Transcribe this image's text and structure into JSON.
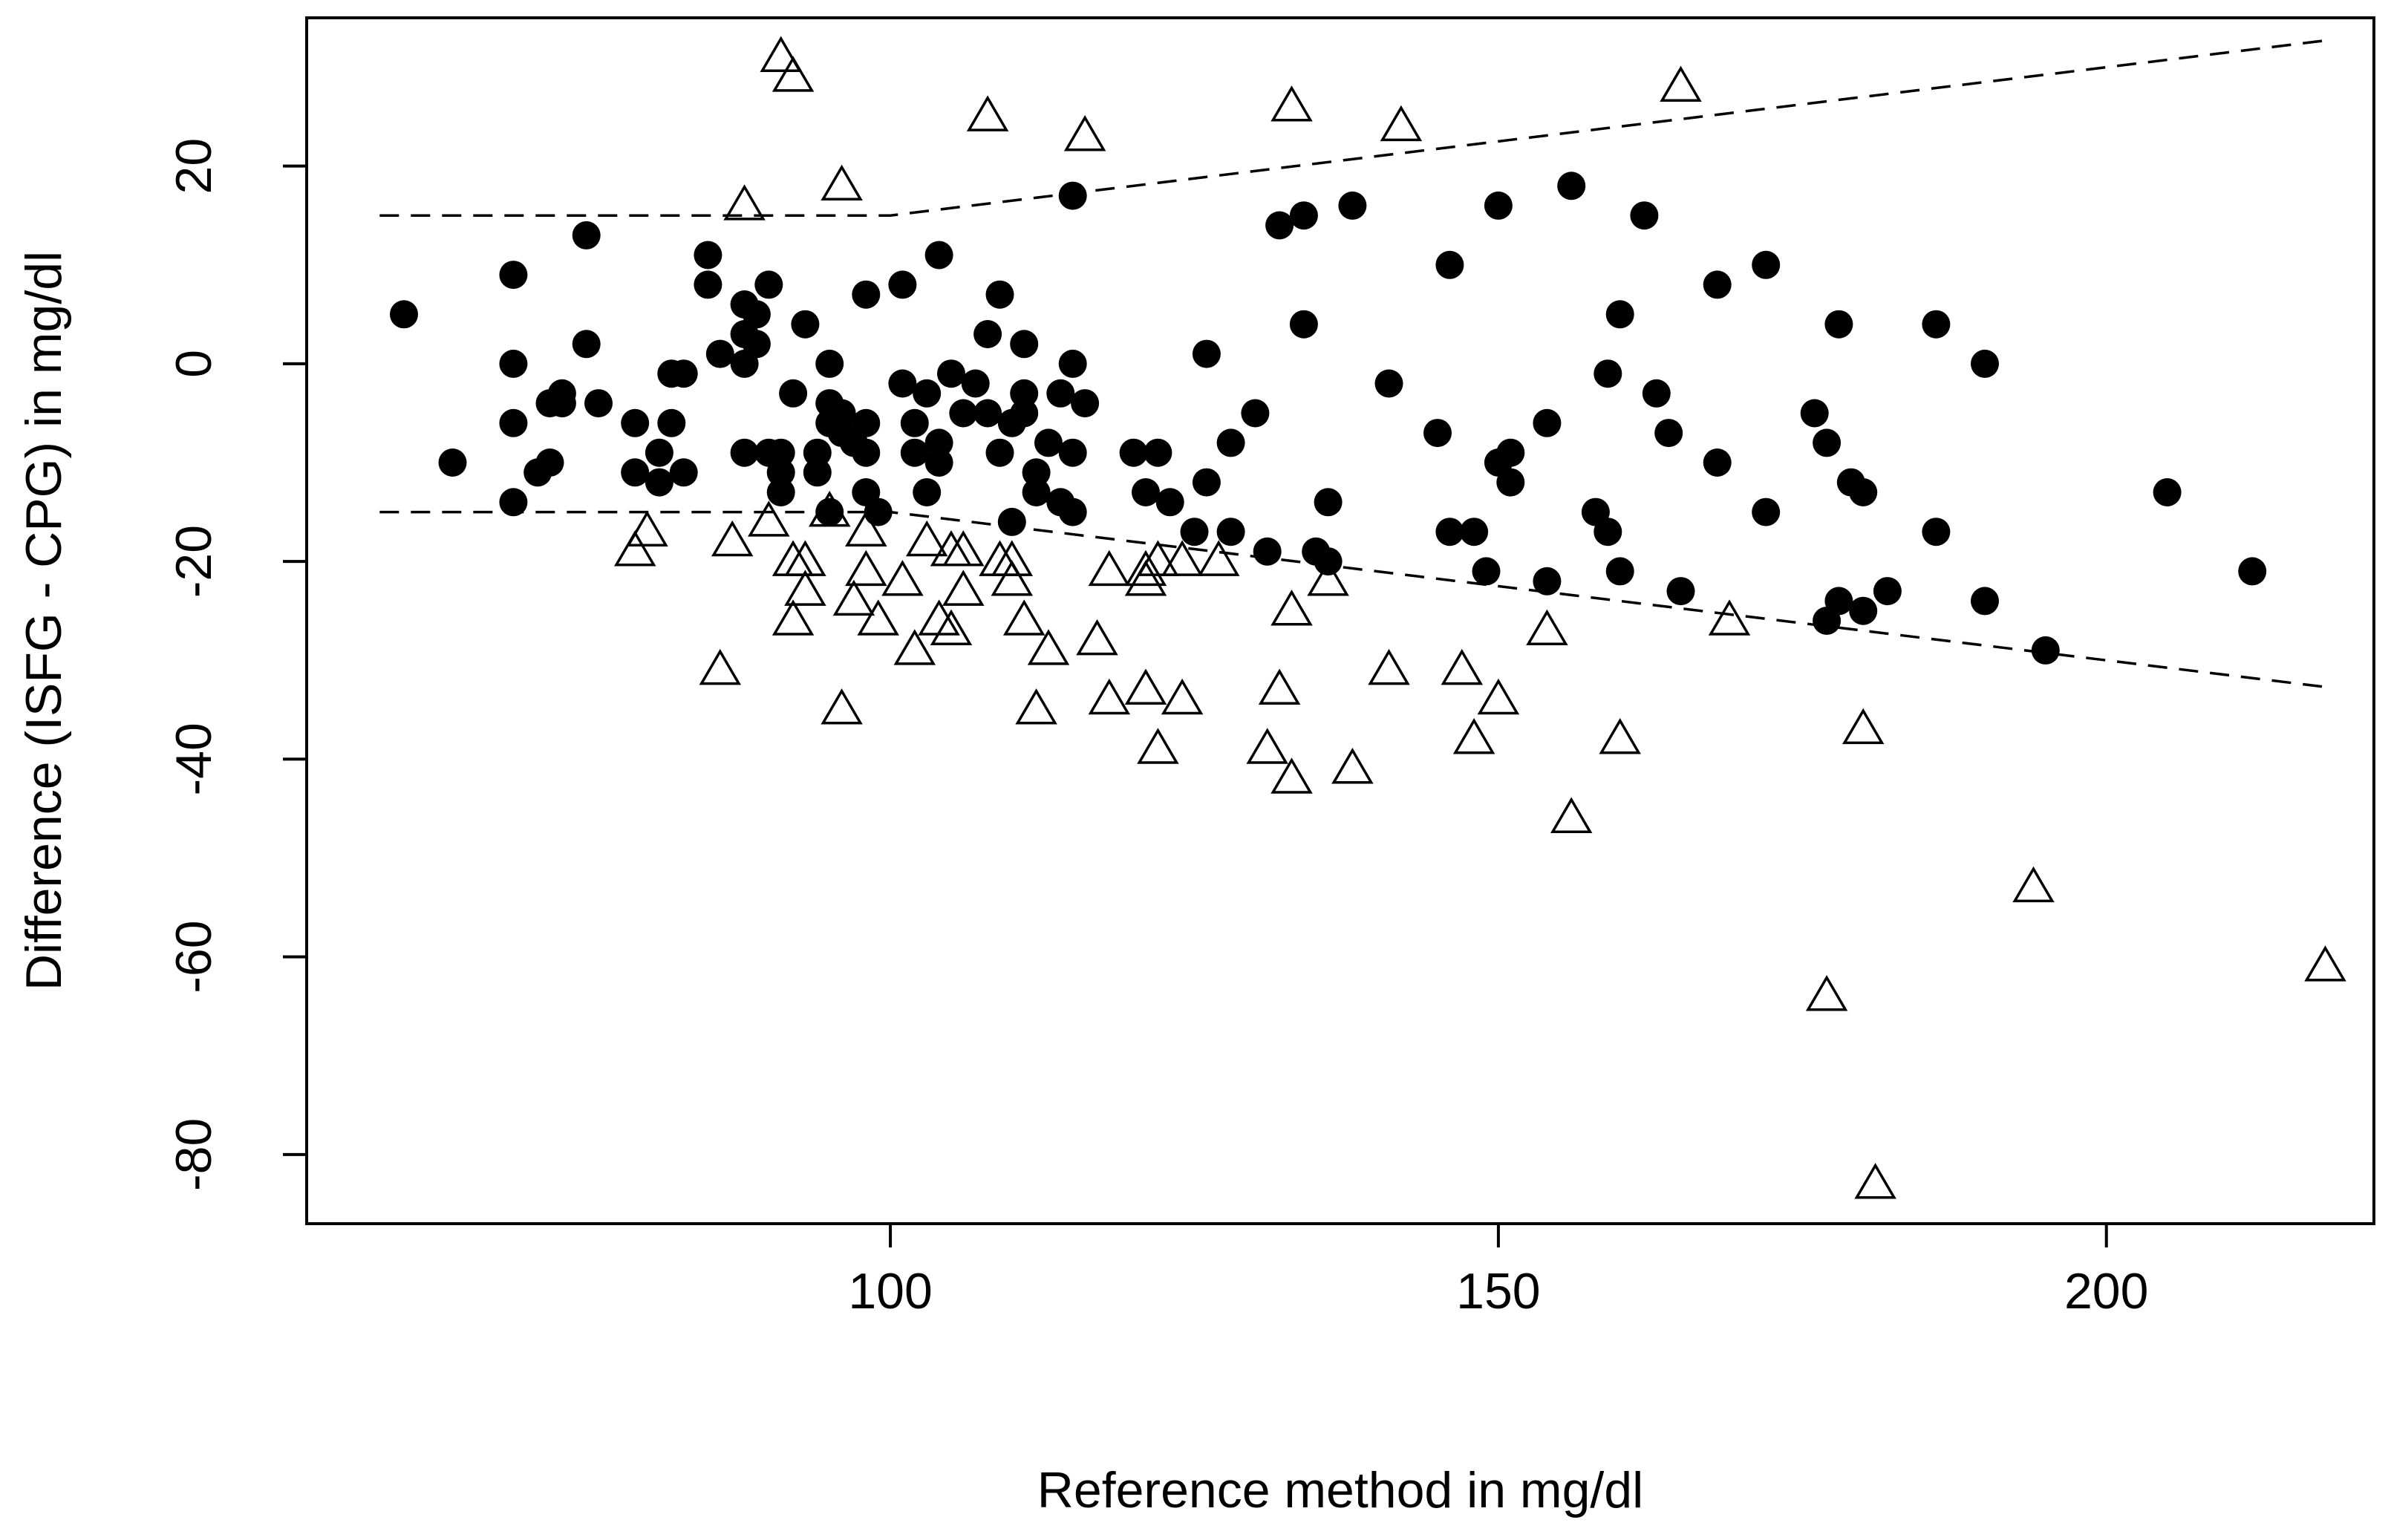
{
  "chart_data": {
    "type": "scatter",
    "title": "",
    "xlabel": "Reference method in mg/dl",
    "ylabel": "Difference (ISFG - CPG) in mg/dl",
    "xlim": [
      52,
      222
    ],
    "ylim": [
      -87,
      35
    ],
    "x_ticks": [
      100,
      150,
      200
    ],
    "y_ticks": [
      -80,
      -60,
      -40,
      -20,
      0,
      20
    ],
    "grid": false,
    "legend": "none",
    "colors": {
      "marks": "#000000",
      "background": "#ffffff"
    },
    "series": [
      {
        "marker": "filled-circle",
        "points": [
          [
            60,
            5
          ],
          [
            64,
            -10
          ],
          [
            69,
            9
          ],
          [
            69,
            0
          ],
          [
            69,
            -6
          ],
          [
            69,
            -14
          ],
          [
            71,
            -11
          ],
          [
            72,
            -10
          ],
          [
            72,
            -4
          ],
          [
            73,
            -3
          ],
          [
            73,
            -4
          ],
          [
            75,
            13
          ],
          [
            75,
            2
          ],
          [
            76,
            -4
          ],
          [
            79,
            -6
          ],
          [
            79,
            -11
          ],
          [
            81,
            -9
          ],
          [
            81,
            -12
          ],
          [
            82,
            -6
          ],
          [
            82,
            -1
          ],
          [
            83,
            -1
          ],
          [
            83,
            -11
          ],
          [
            85,
            11
          ],
          [
            85,
            8
          ],
          [
            86,
            1
          ],
          [
            88,
            6
          ],
          [
            88,
            3
          ],
          [
            88,
            0
          ],
          [
            88,
            -9
          ],
          [
            89,
            5
          ],
          [
            89,
            2
          ],
          [
            90,
            8
          ],
          [
            90,
            -9
          ],
          [
            91,
            -9
          ],
          [
            91,
            -11
          ],
          [
            91,
            -13
          ],
          [
            92,
            -3
          ],
          [
            93,
            4
          ],
          [
            94,
            -9
          ],
          [
            94,
            -11
          ],
          [
            95,
            0
          ],
          [
            95,
            -6
          ],
          [
            95,
            -4
          ],
          [
            95,
            -15
          ],
          [
            96,
            -5
          ],
          [
            96,
            -7
          ],
          [
            97,
            -8
          ],
          [
            98,
            7
          ],
          [
            98,
            -6
          ],
          [
            98,
            -9
          ],
          [
            98,
            -13
          ],
          [
            99,
            -15
          ],
          [
            101,
            8
          ],
          [
            101,
            -2
          ],
          [
            102,
            -6
          ],
          [
            102,
            -9
          ],
          [
            103,
            -3
          ],
          [
            103,
            -13
          ],
          [
            104,
            11
          ],
          [
            104,
            -8
          ],
          [
            104,
            -10
          ],
          [
            105,
            -1
          ],
          [
            106,
            -5
          ],
          [
            107,
            -2
          ],
          [
            108,
            3
          ],
          [
            108,
            -5
          ],
          [
            109,
            7
          ],
          [
            109,
            -9
          ],
          [
            110,
            -6
          ],
          [
            110,
            -16
          ],
          [
            111,
            2
          ],
          [
            111,
            -3
          ],
          [
            111,
            -5
          ],
          [
            112,
            -11
          ],
          [
            112,
            -13
          ],
          [
            113,
            -8
          ],
          [
            114,
            -3
          ],
          [
            114,
            -14
          ],
          [
            115,
            17
          ],
          [
            115,
            0
          ],
          [
            115,
            -9
          ],
          [
            115,
            -15
          ],
          [
            116,
            -4
          ],
          [
            120,
            -9
          ],
          [
            121,
            -13
          ],
          [
            122,
            -9
          ],
          [
            123,
            -14
          ],
          [
            125,
            -17
          ],
          [
            126,
            1
          ],
          [
            126,
            -12
          ],
          [
            128,
            -8
          ],
          [
            128,
            -17
          ],
          [
            130,
            -5
          ],
          [
            131,
            -19
          ],
          [
            132,
            14
          ],
          [
            134,
            15
          ],
          [
            134,
            4
          ],
          [
            135,
            -19
          ],
          [
            136,
            -14
          ],
          [
            136,
            -20
          ],
          [
            138,
            16
          ],
          [
            141,
            -2
          ],
          [
            145,
            -7
          ],
          [
            146,
            10
          ],
          [
            146,
            -17
          ],
          [
            148,
            -17
          ],
          [
            149,
            -21
          ],
          [
            150,
            16
          ],
          [
            150,
            -10
          ],
          [
            151,
            -9
          ],
          [
            151,
            -12
          ],
          [
            154,
            -6
          ],
          [
            154,
            -22
          ],
          [
            156,
            18
          ],
          [
            158,
            -15
          ],
          [
            159,
            -1
          ],
          [
            159,
            -17
          ],
          [
            160,
            5
          ],
          [
            160,
            -21
          ],
          [
            162,
            15
          ],
          [
            163,
            -3
          ],
          [
            164,
            -7
          ],
          [
            165,
            -23
          ],
          [
            168,
            8
          ],
          [
            168,
            -10
          ],
          [
            172,
            10
          ],
          [
            172,
            -15
          ],
          [
            176,
            -5
          ],
          [
            177,
            -8
          ],
          [
            177,
            -26
          ],
          [
            178,
            4
          ],
          [
            178,
            -24
          ],
          [
            179,
            -12
          ],
          [
            180,
            -13
          ],
          [
            180,
            -25
          ],
          [
            182,
            -23
          ],
          [
            186,
            4
          ],
          [
            186,
            -17
          ],
          [
            190,
            0
          ],
          [
            190,
            -24
          ],
          [
            195,
            -29
          ],
          [
            205,
            -13
          ],
          [
            212,
            -21
          ]
        ]
      },
      {
        "marker": "open-triangle",
        "points": [
          [
            79,
            -19
          ],
          [
            80,
            -17
          ],
          [
            86,
            -31
          ],
          [
            87,
            -18
          ],
          [
            88,
            16
          ],
          [
            90,
            -16
          ],
          [
            91,
            31
          ],
          [
            92,
            -20
          ],
          [
            92,
            -26
          ],
          [
            92,
            29
          ],
          [
            93,
            -20
          ],
          [
            93,
            -23
          ],
          [
            95,
            -15
          ],
          [
            96,
            18
          ],
          [
            96,
            -35
          ],
          [
            97,
            -24
          ],
          [
            98,
            -21
          ],
          [
            98,
            -17
          ],
          [
            99,
            -26
          ],
          [
            101,
            -22
          ],
          [
            102,
            -29
          ],
          [
            103,
            -18
          ],
          [
            104,
            -26
          ],
          [
            105,
            -19
          ],
          [
            105,
            -27
          ],
          [
            106,
            -19
          ],
          [
            106,
            -23
          ],
          [
            108,
            25
          ],
          [
            109,
            -20
          ],
          [
            110,
            -20
          ],
          [
            110,
            -22
          ],
          [
            111,
            -26
          ],
          [
            112,
            -35
          ],
          [
            113,
            -29
          ],
          [
            116,
            23
          ],
          [
            117,
            -28
          ],
          [
            118,
            -34
          ],
          [
            118,
            -21
          ],
          [
            121,
            -21
          ],
          [
            121,
            -22
          ],
          [
            121,
            -33
          ],
          [
            122,
            -20
          ],
          [
            122,
            -39
          ],
          [
            124,
            -34
          ],
          [
            124,
            -20
          ],
          [
            127,
            -20
          ],
          [
            131,
            -39
          ],
          [
            132,
            -33
          ],
          [
            133,
            26
          ],
          [
            133,
            -25
          ],
          [
            133,
            -42
          ],
          [
            136,
            -22
          ],
          [
            138,
            -41
          ],
          [
            141,
            -31
          ],
          [
            142,
            24
          ],
          [
            147,
            -31
          ],
          [
            148,
            -38
          ],
          [
            150,
            -34
          ],
          [
            154,
            -27
          ],
          [
            156,
            -46
          ],
          [
            160,
            -38
          ],
          [
            165,
            28
          ],
          [
            169,
            -26
          ],
          [
            177,
            -64
          ],
          [
            180,
            -37
          ],
          [
            181,
            -83
          ],
          [
            194,
            -53
          ],
          [
            218,
            -61
          ]
        ]
      }
    ],
    "reference_lines": [
      {
        "style": "dashed",
        "points": [
          [
            58,
            15
          ],
          [
            100,
            15
          ],
          [
            218,
            32.7
          ]
        ]
      },
      {
        "style": "dashed",
        "points": [
          [
            58,
            -15
          ],
          [
            100,
            -15
          ],
          [
            218,
            -32.7
          ]
        ]
      }
    ]
  }
}
